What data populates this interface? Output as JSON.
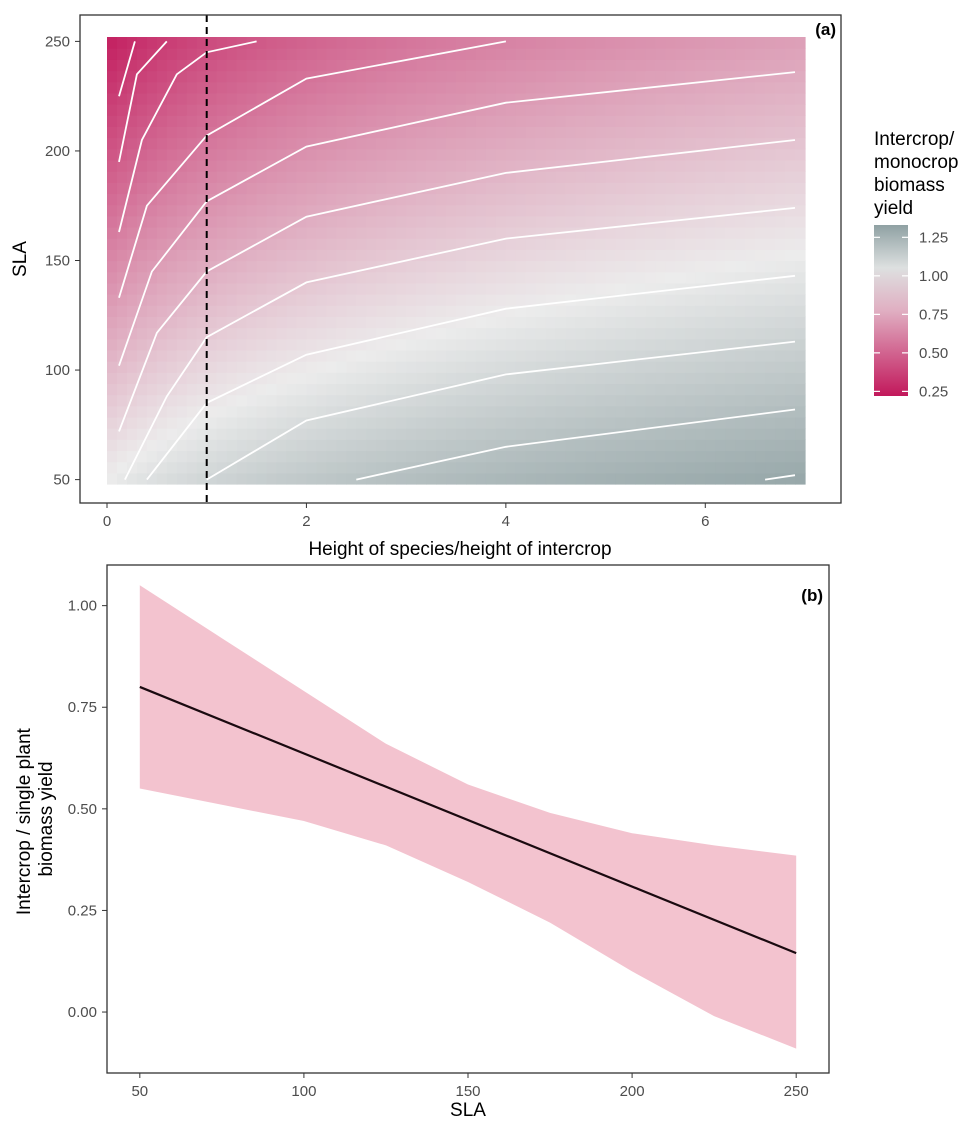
{
  "colors": {
    "low": "#c2185b",
    "mid": "#ececec",
    "high": "#8fa1a3",
    "contour": "#ffffff",
    "ribbon": "#f3c3cf",
    "line": "#1a0a10",
    "axis_text": "#4d4d4d",
    "panel_border": "#333333"
  },
  "chart_data": [
    {
      "panel_tag": "(a)",
      "type": "heatmap",
      "xlabel": "Height of species/height of intercrop",
      "ylabel": "SLA",
      "xlim": [
        0,
        7
      ],
      "ylim": [
        48,
        252
      ],
      "xticks": [
        0,
        2,
        4,
        6
      ],
      "yticks": [
        50,
        100,
        150,
        200,
        250
      ],
      "reference_line_x": 1,
      "reference_line_style": "dashed",
      "value_note": "fill = predicted intercrop/monocrop biomass yield, highest at high height ratio and low SLA",
      "corner_values": {
        "x0_y250": 0.25,
        "x0_y50": 1.0,
        "x7_y50": 1.3,
        "x7_y250": 0.72
      },
      "contours": [
        {
          "x": [
            0.12,
            0.28
          ],
          "y": [
            225,
            250
          ]
        },
        {
          "x": [
            0.12,
            0.3,
            0.6
          ],
          "y": [
            195,
            235,
            250
          ]
        },
        {
          "x": [
            0.12,
            0.35,
            0.7,
            1.0,
            1.5
          ],
          "y": [
            163,
            205,
            235,
            245,
            250
          ]
        },
        {
          "x": [
            0.12,
            0.4,
            1.0,
            2.0,
            4.0
          ],
          "y": [
            133,
            175,
            207,
            233,
            250
          ]
        },
        {
          "x": [
            0.12,
            0.45,
            1.0,
            2.0,
            4.0,
            6.9
          ],
          "y": [
            102,
            145,
            177,
            202,
            222,
            236
          ]
        },
        {
          "x": [
            0.12,
            0.5,
            1.0,
            2.0,
            4.0,
            6.9
          ],
          "y": [
            72,
            117,
            145,
            170,
            190,
            205
          ]
        },
        {
          "x": [
            0.18,
            0.6,
            1.0,
            2.0,
            4.0,
            6.9
          ],
          "y": [
            50,
            88,
            115,
            140,
            160,
            174
          ]
        },
        {
          "x": [
            0.4,
            1.0,
            2.0,
            4.0,
            6.9
          ],
          "y": [
            50,
            85,
            107,
            128,
            143
          ]
        },
        {
          "x": [
            1.0,
            2.0,
            4.0,
            6.9
          ],
          "y": [
            50,
            77,
            98,
            113
          ]
        },
        {
          "x": [
            2.5,
            4.0,
            6.9
          ],
          "y": [
            50,
            65,
            82
          ]
        },
        {
          "x": [
            6.6,
            6.9
          ],
          "y": [
            50,
            52
          ]
        }
      ],
      "legend": {
        "title": [
          "Intercrop/",
          "monocrop",
          "biomass",
          "yield"
        ],
        "range": [
          0.22,
          1.33
        ],
        "breaks": [
          "1.25",
          "1.00",
          "0.75",
          "0.50",
          "0.25"
        ],
        "break_values": [
          1.25,
          1.0,
          0.75,
          0.5,
          0.25
        ]
      }
    },
    {
      "panel_tag": "(b)",
      "type": "line",
      "xlabel": "SLA",
      "ylabel": [
        "Intercrop / single plant",
        "biomass yield"
      ],
      "xlim": [
        40,
        260
      ],
      "ylim": [
        -0.15,
        1.1
      ],
      "xticks": [
        50,
        100,
        150,
        200,
        250
      ],
      "yticks": [
        0.0,
        0.25,
        0.5,
        0.75,
        1.0
      ],
      "ytick_labels": [
        "0.00",
        "0.25",
        "0.50",
        "0.75",
        "1.00"
      ],
      "fit": {
        "x": [
          50,
          250
        ],
        "y": [
          0.8,
          0.145
        ]
      },
      "ribbon": {
        "x": [
          50,
          75,
          100,
          125,
          150,
          175,
          200,
          225,
          250
        ],
        "lower": [
          0.55,
          0.51,
          0.47,
          0.41,
          0.32,
          0.22,
          0.1,
          -0.01,
          -0.09
        ],
        "upper": [
          1.05,
          0.92,
          0.79,
          0.66,
          0.56,
          0.49,
          0.44,
          0.41,
          0.385
        ]
      }
    }
  ]
}
